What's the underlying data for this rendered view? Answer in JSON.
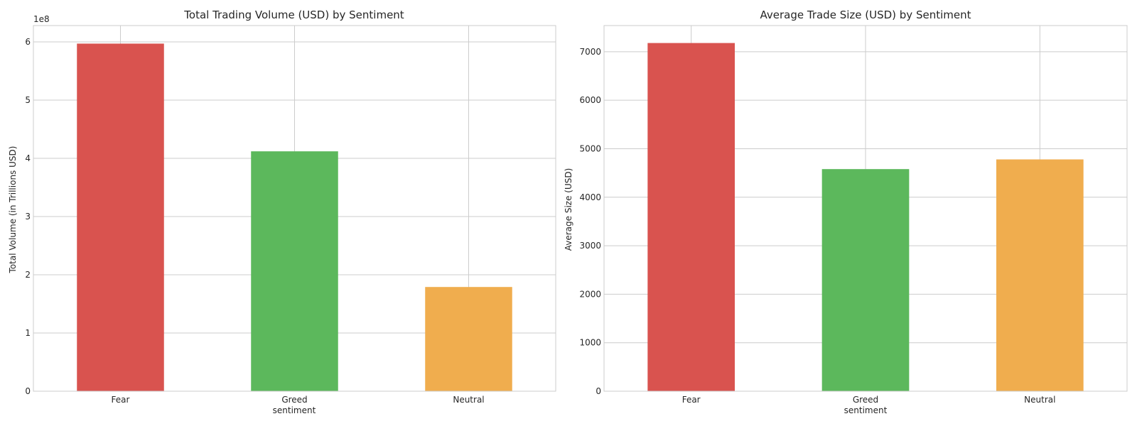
{
  "colors": {
    "fear": "#d9534f",
    "greed": "#5cb85c",
    "neutral": "#f0ad4e",
    "grid": "#cccccc",
    "spine": "#cccccc"
  },
  "chart_data": [
    {
      "type": "bar",
      "title": "Total Trading Volume (USD) by Sentiment",
      "xlabel": "sentiment",
      "ylabel": "Total Volume (in Trillions USD)",
      "offset_label": "1e8",
      "categories": [
        "Fear",
        "Greed",
        "Neutral"
      ],
      "values": [
        597000000,
        412000000,
        179000000
      ],
      "colors": [
        "#d9534f",
        "#5cb85c",
        "#f0ad4e"
      ],
      "ylim": [
        0,
        628000000
      ],
      "yticks": [
        0,
        100000000,
        200000000,
        300000000,
        400000000,
        500000000,
        600000000
      ],
      "ytick_labels": [
        "0",
        "1",
        "2",
        "3",
        "4",
        "5",
        "6"
      ],
      "grid": true,
      "legend": "none"
    },
    {
      "type": "bar",
      "title": "Average Trade Size (USD) by Sentiment",
      "xlabel": "sentiment",
      "ylabel": "Average Size (USD)",
      "categories": [
        "Fear",
        "Greed",
        "Neutral"
      ],
      "values": [
        7180,
        4580,
        4780
      ],
      "colors": [
        "#d9534f",
        "#5cb85c",
        "#f0ad4e"
      ],
      "ylim": [
        0,
        7540
      ],
      "yticks": [
        0,
        1000,
        2000,
        3000,
        4000,
        5000,
        6000,
        7000
      ],
      "ytick_labels": [
        "0",
        "1000",
        "2000",
        "3000",
        "4000",
        "5000",
        "6000",
        "7000"
      ],
      "grid": true,
      "legend": "none"
    }
  ]
}
